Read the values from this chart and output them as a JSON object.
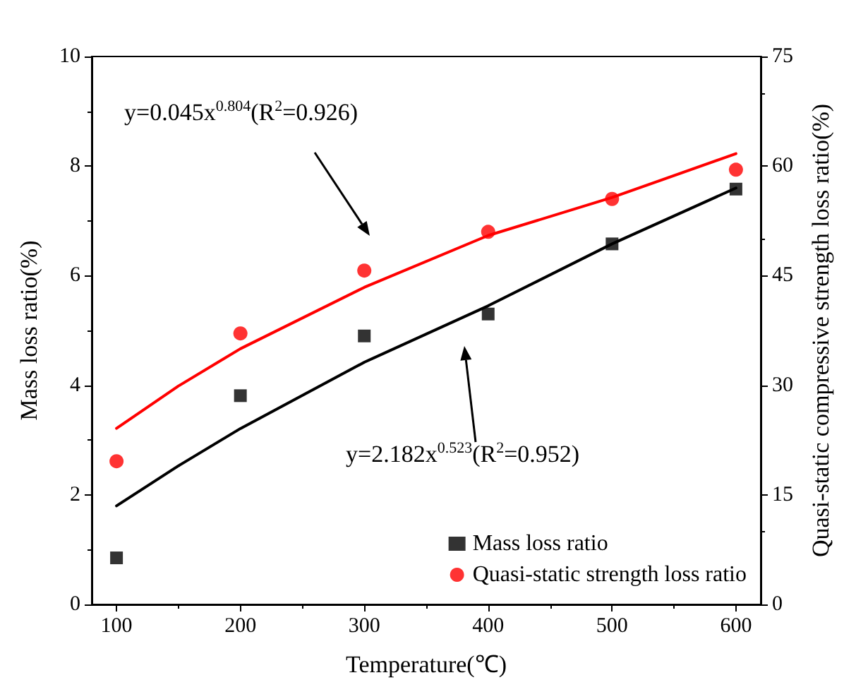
{
  "chart_data": {
    "type": "scatter",
    "xlabel": "Temperature(℃)",
    "ylabel": "Mass loss ratio(%)",
    "y2label": "Quasi-static compressive strength loss ratio(%)",
    "x": [
      100,
      200,
      300,
      400,
      500,
      600
    ],
    "series": [
      {
        "name": "Mass loss ratio",
        "color": "#000000",
        "marker": "square",
        "values": [
          0.85,
          3.81,
          4.9,
          5.3,
          6.58,
          7.58
        ]
      },
      {
        "name": "Quasi-static strength loss ratio",
        "color": "#ff0000",
        "marker": "circle",
        "axis": "y2",
        "values": [
          19.6,
          37.1,
          45.7,
          51.0,
          55.5,
          59.5
        ]
      },
      {
        "type": "line",
        "color": "#000000",
        "x": [
          100,
          150,
          200,
          300,
          400,
          500,
          600
        ],
        "values": [
          1.8,
          2.53,
          3.21,
          4.42,
          5.45,
          6.58,
          7.6
        ]
      },
      {
        "type": "line",
        "color": "#ff0000",
        "axis": "y2",
        "x": [
          100,
          150,
          200,
          300,
          400,
          500,
          600
        ],
        "values": [
          24.1,
          29.9,
          35.0,
          43.4,
          50.5,
          55.7,
          61.7
        ]
      }
    ],
    "xlim": [
      80,
      620
    ],
    "xticks": [
      100,
      200,
      300,
      400,
      500,
      600
    ],
    "ylim": [
      0,
      10
    ],
    "yticks": [
      0,
      2,
      4,
      6,
      8,
      10
    ],
    "y2lim": [
      0,
      75
    ],
    "y2ticks": [
      0,
      15,
      30,
      45,
      60,
      75
    ],
    "annotations": [
      "y=0.045x$^{0.804}$(R$^{2}$=0.926)",
      "y=2.182x$^{0.523}$(R$^{2}$=0.952)"
    ],
    "legend": "bottom right",
    "grid": false,
    "line_style": "solid"
  }
}
